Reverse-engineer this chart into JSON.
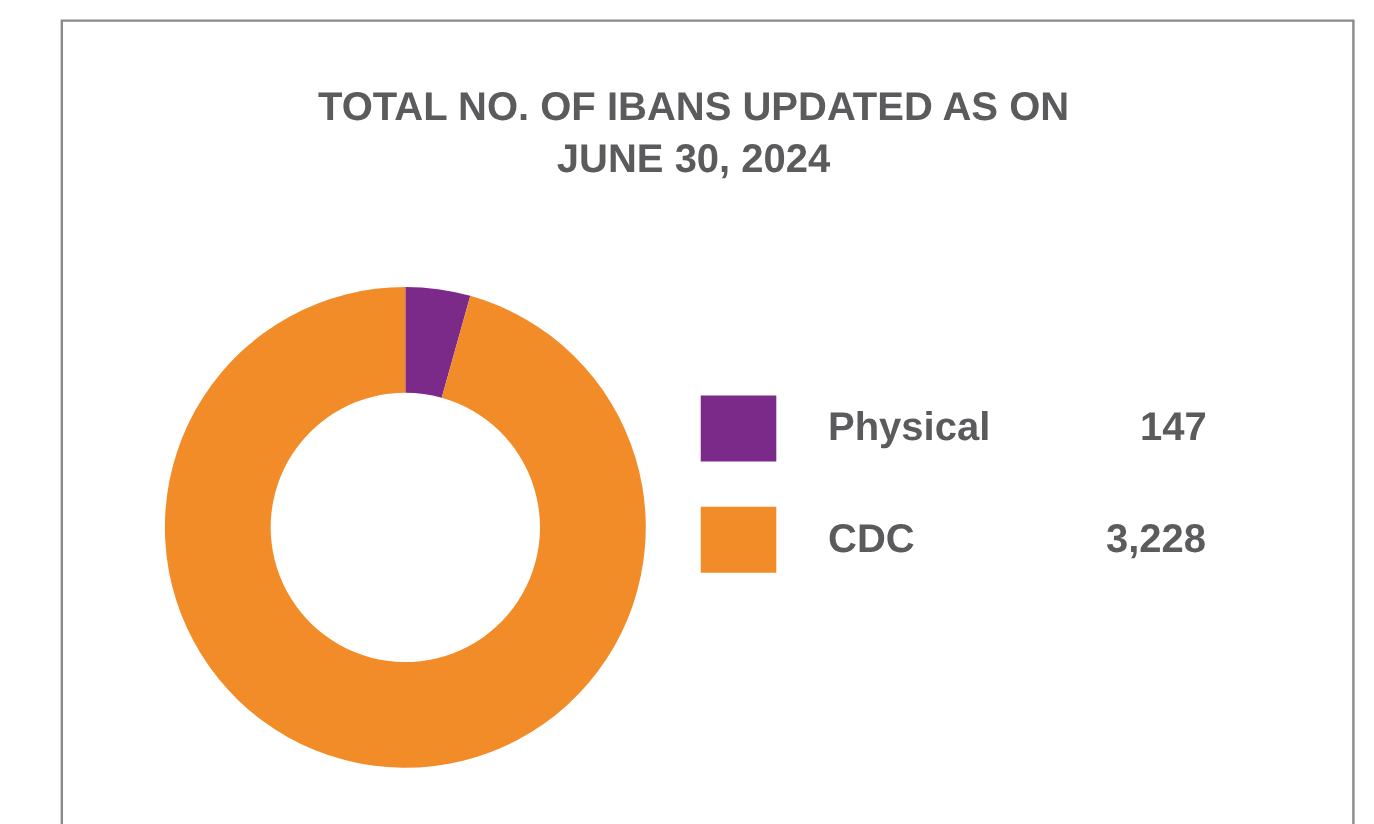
{
  "chart_data": {
    "type": "donut",
    "title": "TOTAL NO. OF IBANS UPDATED AS ON\nJUNE 30, 2024",
    "categories": [
      "Physical",
      "CDC"
    ],
    "values": [
      147,
      3228
    ],
    "value_labels": [
      "147",
      "3,228"
    ],
    "colors": [
      "#7b2a8a",
      "#f28c28"
    ],
    "legend": "right"
  }
}
